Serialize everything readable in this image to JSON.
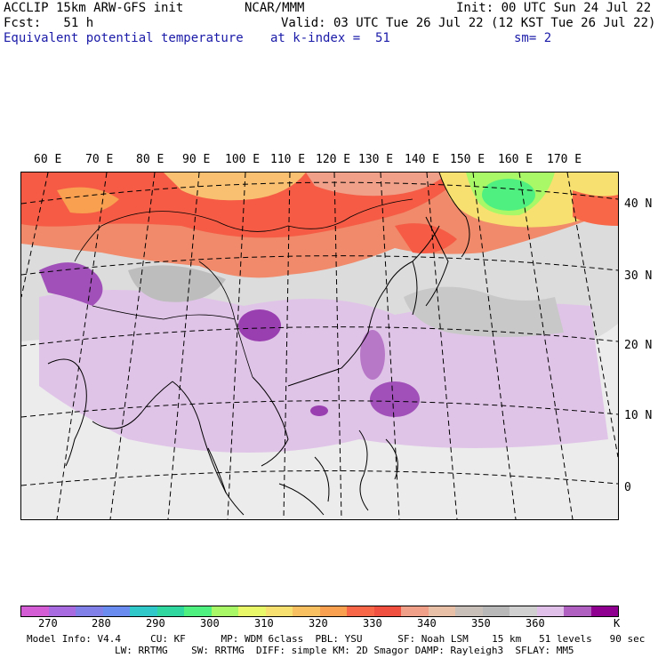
{
  "header": {
    "left_line1": "ACCLIP 15km ARW-GFS init",
    "center_line1": "NCAR/MMM",
    "right_line1": "Init: 00 UTC Sun 24 Jul 22",
    "left_line2": "Fcst:   51 h",
    "right_line2": "Valid: 03 UTC Tue 26 Jul 22 (12 KST Tue 26 Jul 22)",
    "field_name": "Equivalent potential temperature",
    "level_text": "at k-index =  51",
    "smooth_text": "sm= 2"
  },
  "map": {
    "longitude_labels": [
      "60 E",
      "70 E",
      "80 E",
      "90 E",
      "100 E",
      "110 E",
      "120 E",
      "130 E",
      "140 E",
      "150 E",
      "160 E",
      "170 E"
    ],
    "latitude_labels": [
      "40 N",
      "30 N",
      "20 N",
      "10 N",
      "0"
    ]
  },
  "colorbar": {
    "colors": [
      "#d45cd4",
      "#a86ce0",
      "#8080e8",
      "#6a8cf0",
      "#30c8c8",
      "#30d8a0",
      "#50f080",
      "#a8f868",
      "#e8f868",
      "#f8e070",
      "#f8c060",
      "#f8a050",
      "#f86848",
      "#f05040",
      "#f0a088",
      "#e8c0a8",
      "#c8c0b8",
      "#b8b8b8",
      "#d0d0d0",
      "#e0c0e8",
      "#b060c0",
      "#900090"
    ],
    "labels": [
      "270",
      "280",
      "290",
      "300",
      "310",
      "320",
      "330",
      "340",
      "350",
      "360",
      "K"
    ]
  },
  "footer": {
    "line1": "Model Info: V4.4     CU: KF      MP: WDM 6class  PBL: YSU      SF: Noah LSM    15 km   51 levels   90 sec",
    "line2": "LW: RRTMG    SW: RRTMG  DIFF: simple KM: 2D Smagor DAMP: Rayleigh3  SFLAY: MM5"
  }
}
